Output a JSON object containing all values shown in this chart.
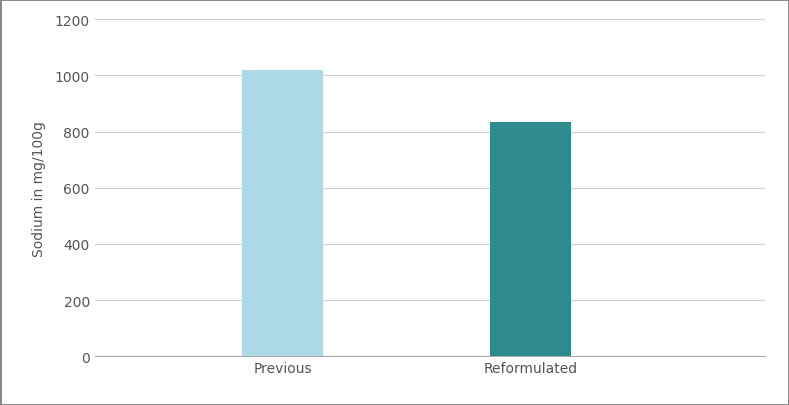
{
  "categories": [
    "Previous",
    "Reformulated"
  ],
  "values": [
    1017.8,
    834.6
  ],
  "bar_colors": [
    "#add8e6",
    "#2e8b8b"
  ],
  "ylabel": "Sodium in mg/100g",
  "ylim": [
    0,
    1200
  ],
  "yticks": [
    0,
    200,
    400,
    600,
    800,
    1000,
    1200
  ],
  "background_color": "#ffffff",
  "grid_color": "#d0d0d0",
  "bar_width": 0.12,
  "bar_positions": [
    0.28,
    0.65
  ],
  "xlim": [
    0.0,
    1.0
  ],
  "border_color": "#aaaaaa",
  "tick_label_color": "#555555",
  "ylabel_color": "#555555",
  "ylabel_fontsize": 10,
  "tick_fontsize": 10,
  "xtick_fontsize": 10
}
